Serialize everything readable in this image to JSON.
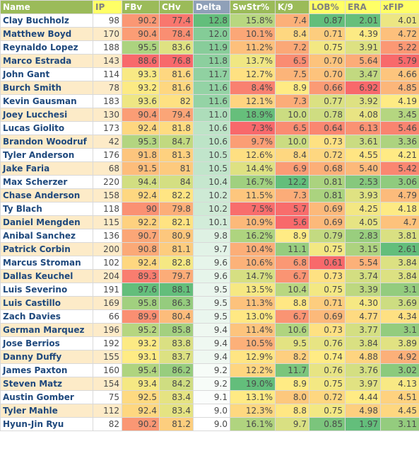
{
  "chart_data": {
    "type": "table",
    "columns": [
      "Name",
      "IP",
      "FBv",
      "CHv",
      "Delta",
      "SwStr%",
      "K/9",
      "LOB%",
      "ERA",
      "xFIP"
    ],
    "rows": [
      [
        "Clay Buchholz",
        "98",
        "90.2",
        "77.4",
        "12.8",
        "15.8%",
        "7.4",
        "0.87",
        "2.01",
        "4.01"
      ],
      [
        "Matthew Boyd",
        "170",
        "90.4",
        "78.4",
        "12.0",
        "10.1%",
        "8.4",
        "0.71",
        "4.39",
        "4.72"
      ],
      [
        "Reynaldo Lopez",
        "188",
        "95.5",
        "83.6",
        "11.9",
        "11.2%",
        "7.2",
        "0.75",
        "3.91",
        "5.22"
      ],
      [
        "Marco Estrada",
        "143",
        "88.6",
        "76.8",
        "11.8",
        "13.7%",
        "6.5",
        "0.70",
        "5.64",
        "5.79"
      ],
      [
        "John Gant",
        "114",
        "93.3",
        "81.6",
        "11.7",
        "12.7%",
        "7.5",
        "0.70",
        "3.47",
        "4.66"
      ],
      [
        "Burch Smith",
        "78",
        "93.2",
        "81.6",
        "11.6",
        "8.4%",
        "8.9",
        "0.66",
        "6.92",
        "4.85"
      ],
      [
        "Kevin Gausman",
        "183",
        "93.6",
        "82",
        "11.6",
        "12.1%",
        "7.3",
        "0.77",
        "3.92",
        "4.19"
      ],
      [
        "Joey Lucchesi",
        "130",
        "90.4",
        "79.4",
        "11.0",
        "18.9%",
        "10.0",
        "0.78",
        "4.08",
        "3.45"
      ],
      [
        "Lucas Giolito",
        "173",
        "92.4",
        "81.8",
        "10.6",
        "7.3%",
        "6.5",
        "0.64",
        "6.13",
        "5.46"
      ],
      [
        "Brandon Woodruf",
        "42",
        "95.3",
        "84.7",
        "10.6",
        "9.7%",
        "10.0",
        "0.73",
        "3.61",
        "3.36"
      ],
      [
        "Tyler Anderson",
        "176",
        "91.8",
        "81.3",
        "10.5",
        "12.6%",
        "8.4",
        "0.72",
        "4.55",
        "4.21"
      ],
      [
        "Jake Faria",
        "68",
        "91.5",
        "81",
        "10.5",
        "14.4%",
        "6.9",
        "0.68",
        "5.40",
        "5.42"
      ],
      [
        "Max Scherzer",
        "220",
        "94.4",
        "84",
        "10.4",
        "16.7%",
        "12.2",
        "0.81",
        "2.53",
        "3.06"
      ],
      [
        "Chase Anderson",
        "158",
        "92.4",
        "82.2",
        "10.2",
        "11.5%",
        "7.3",
        "0.81",
        "3.93",
        "4.79"
      ],
      [
        "Ty Blach",
        "118",
        "90",
        "79.8",
        "10.2",
        "7.5%",
        "5.7",
        "0.69",
        "4.25",
        "4.18"
      ],
      [
        "Daniel Mengden",
        "115",
        "92.2",
        "82.1",
        "10.1",
        "10.9%",
        "5.6",
        "0.69",
        "4.05",
        "4.7"
      ],
      [
        "Anibal Sanchez",
        "136",
        "90.7",
        "80.9",
        "9.8",
        "16.2%",
        "8.9",
        "0.79",
        "2.83",
        "3.81"
      ],
      [
        "Patrick Corbin",
        "200",
        "90.8",
        "81.1",
        "9.7",
        "10.4%",
        "11.1",
        "0.75",
        "3.15",
        "2.61"
      ],
      [
        "Marcus Stroman",
        "102",
        "92.4",
        "82.8",
        "9.6",
        "10.6%",
        "6.8",
        "0.61",
        "5.54",
        "3.84"
      ],
      [
        "Dallas Keuchel",
        "204",
        "89.3",
        "79.7",
        "9.6",
        "14.7%",
        "6.7",
        "0.73",
        "3.74",
        "3.84"
      ],
      [
        "Luis Severino",
        "191",
        "97.6",
        "88.1",
        "9.5",
        "13.5%",
        "10.4",
        "0.75",
        "3.39",
        "3.1"
      ],
      [
        "Luis Castillo",
        "169",
        "95.8",
        "86.3",
        "9.5",
        "11.3%",
        "8.8",
        "0.71",
        "4.30",
        "3.69"
      ],
      [
        "Zach Davies",
        "66",
        "89.9",
        "80.4",
        "9.5",
        "13.0%",
        "6.7",
        "0.69",
        "4.77",
        "4.34"
      ],
      [
        "German Marquez",
        "196",
        "95.2",
        "85.8",
        "9.4",
        "11.4%",
        "10.6",
        "0.73",
        "3.77",
        "3.1"
      ],
      [
        "Jose Berrios",
        "192",
        "93.2",
        "83.8",
        "9.4",
        "10.5%",
        "9.5",
        "0.76",
        "3.84",
        "3.89"
      ],
      [
        "Danny Duffy",
        "155",
        "93.1",
        "83.7",
        "9.4",
        "12.9%",
        "8.2",
        "0.74",
        "4.88",
        "4.92"
      ],
      [
        "James Paxton",
        "160",
        "95.4",
        "86.2",
        "9.2",
        "12.2%",
        "11.7",
        "0.76",
        "3.76",
        "3.02"
      ],
      [
        "Steven Matz",
        "154",
        "93.4",
        "84.2",
        "9.2",
        "19.0%",
        "8.9",
        "0.75",
        "3.97",
        "4.13"
      ],
      [
        "Austin Gomber",
        "75",
        "92.5",
        "83.4",
        "9.1",
        "13.1%",
        "8.0",
        "0.72",
        "4.44",
        "4.51"
      ],
      [
        "Tyler Mahle",
        "112",
        "92.4",
        "83.4",
        "9.0",
        "12.3%",
        "8.8",
        "0.75",
        "4.98",
        "4.45"
      ],
      [
        "Hyun-Jin Ryu",
        "82",
        "90.2",
        "81.2",
        "9.0",
        "16.1%",
        "9.7",
        "0.85",
        "1.97",
        "3.11"
      ]
    ],
    "color_scales": {
      "FBv": {
        "low": "#f8696b",
        "mid": "#ffeb84",
        "high": "#63be7b"
      },
      "CHv": {
        "low": "#f8696b",
        "mid": "#ffeb84",
        "high": "#63be7b"
      },
      "Delta": {
        "low": "#ffffff",
        "high": "#63be7b"
      },
      "SwStr%": {
        "low": "#f8696b",
        "mid": "#ffeb84",
        "high": "#63be7b"
      },
      "K/9": {
        "low": "#f8696b",
        "mid": "#ffeb84",
        "high": "#63be7b"
      },
      "LOB%": {
        "low": "#f8696b",
        "mid": "#ffeb84",
        "high": "#63be7b"
      },
      "ERA": {
        "low": "#63be7b",
        "mid": "#ffeb84",
        "high": "#f8696b"
      },
      "xFIP": {
        "low": "#63be7b",
        "mid": "#ffeb84",
        "high": "#f8696b"
      }
    }
  }
}
